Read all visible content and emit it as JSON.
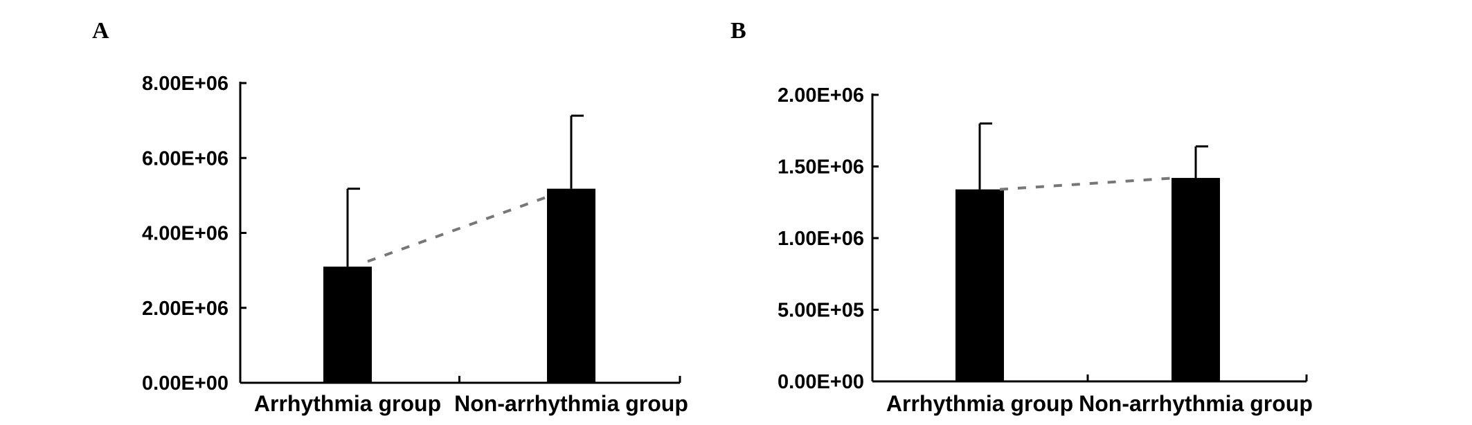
{
  "panels": [
    "A",
    "B"
  ],
  "chart_data": [
    {
      "type": "bar",
      "panel": "A",
      "categories": [
        "Arrhythmia group",
        "Non-arrhythmia group"
      ],
      "values": [
        3100000,
        5180000
      ],
      "error_upper": [
        5180000,
        7130000
      ],
      "trendline": [
        3240000,
        5000000
      ],
      "ylim": [
        0,
        8000000
      ],
      "yticks": [
        0,
        2000000,
        4000000,
        6000000,
        8000000
      ],
      "ytick_labels": [
        "0.00E+00",
        "2.00E+06",
        "4.00E+06",
        "6.00E+06",
        "8.00E+06"
      ],
      "title": "",
      "xlabel": "",
      "ylabel": "",
      "bar_color": "#000000",
      "trend_color": "#777777"
    },
    {
      "type": "bar",
      "panel": "B",
      "categories": [
        "Arrhythmia group",
        "Non-arrhythmia group"
      ],
      "values": [
        1340000,
        1420000
      ],
      "error_upper": [
        1800000,
        1640000
      ],
      "trendline": [
        1340000,
        1420000
      ],
      "ylim": [
        0,
        2000000
      ],
      "yticks": [
        0,
        500000,
        1000000,
        1500000,
        2000000
      ],
      "ytick_labels": [
        "0.00E+00",
        "5.00E+05",
        "1.00E+06",
        "1.50E+06",
        "2.00E+06"
      ],
      "title": "",
      "xlabel": "",
      "ylabel": "",
      "bar_color": "#000000",
      "trend_color": "#777777"
    }
  ]
}
